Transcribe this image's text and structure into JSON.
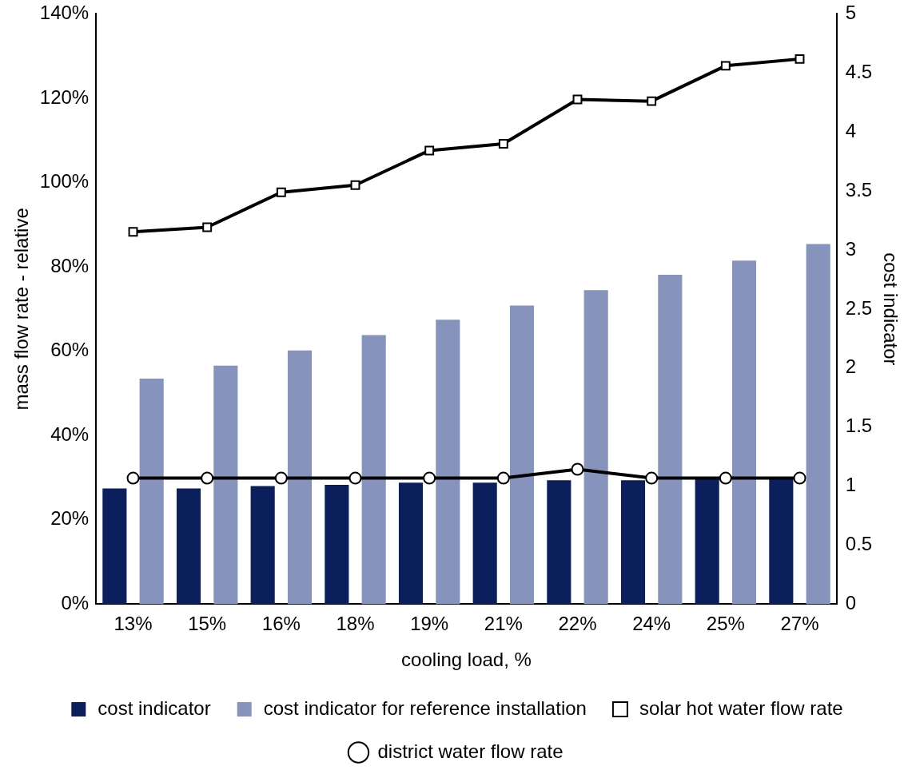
{
  "chart_data": {
    "type": "bar",
    "xlabel": "cooling load, %",
    "ylabel": "mass flow rate - relative",
    "y2label": "cost indicator",
    "categories": [
      "13%",
      "15%",
      "16%",
      "18%",
      "19%",
      "21%",
      "22%",
      "24%",
      "25%",
      "27%"
    ],
    "ylim": [
      0,
      140
    ],
    "yticks": [
      {
        "value": 0,
        "label": "0%"
      },
      {
        "value": 20,
        "label": "20%"
      },
      {
        "value": 40,
        "label": "40%"
      },
      {
        "value": 60,
        "label": "60%"
      },
      {
        "value": 80,
        "label": "80%"
      },
      {
        "value": 100,
        "label": "100%"
      },
      {
        "value": 120,
        "label": "120%"
      },
      {
        "value": 140,
        "label": "140%"
      }
    ],
    "y2lim": [
      0,
      5
    ],
    "y2ticks": [
      0,
      0.5,
      1,
      1.5,
      2,
      2.5,
      3,
      3.5,
      4,
      4.5,
      5
    ],
    "grid": false,
    "legend": "bottom",
    "series": [
      {
        "name": "cost indicator",
        "axis": "y2",
        "color": "#0a1f5c",
        "values": [
          0.98,
          0.98,
          1.0,
          1.01,
          1.03,
          1.03,
          1.05,
          1.05,
          1.06,
          1.07
        ]
      },
      {
        "name": "cost indicator for reference installation",
        "axis": "y2",
        "color": "#8593bd",
        "values": [
          1.91,
          2.02,
          2.15,
          2.28,
          2.41,
          2.53,
          2.66,
          2.79,
          2.91,
          3.05
        ]
      },
      {
        "name": "solar hot water flow rate",
        "type": "line",
        "axis": "y",
        "color": "#000000",
        "marker": "square",
        "values": [
          88.3,
          89.4,
          97.7,
          99.4,
          107.6,
          109.2,
          119.7,
          119.3,
          127.7,
          129.3
        ]
      },
      {
        "name": "district water flow rate",
        "type": "line",
        "axis": "y",
        "color": "#000000",
        "marker": "circle",
        "values": [
          29.9,
          29.9,
          29.9,
          29.9,
          29.9,
          29.9,
          32.0,
          29.9,
          29.9,
          29.9
        ]
      }
    ]
  }
}
